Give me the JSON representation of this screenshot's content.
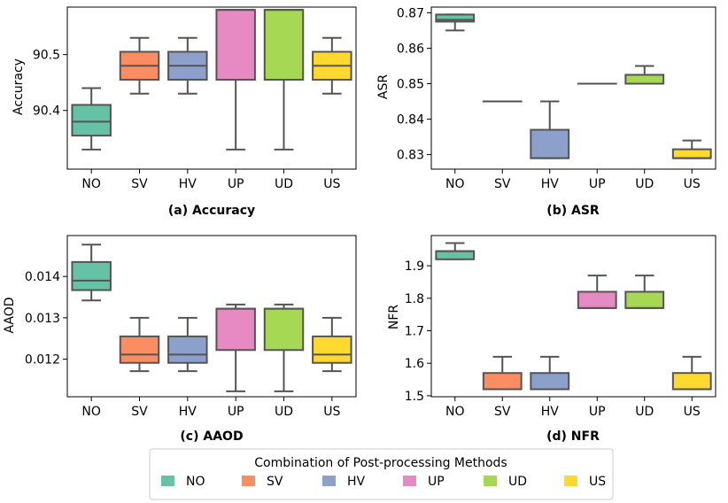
{
  "chart_data": [
    {
      "type": "box",
      "caption": "(a) Accuracy",
      "ylabel": "Accuracy",
      "xlabel": "",
      "categories": [
        "NO",
        "SV",
        "HV",
        "UP",
        "UD",
        "US"
      ],
      "ylim": [
        90.295,
        90.585
      ],
      "yticks": [
        90.4,
        90.5
      ],
      "ytick_labels": [
        "90.4",
        "90.5"
      ],
      "boxes": [
        {
          "category": "NO",
          "whislo": 90.33,
          "q1": 90.355,
          "med": 90.38,
          "q3": 90.41,
          "whishi": 90.44
        },
        {
          "category": "SV",
          "whislo": 90.43,
          "q1": 90.455,
          "med": 90.48,
          "q3": 90.505,
          "whishi": 90.53
        },
        {
          "category": "HV",
          "whislo": 90.43,
          "q1": 90.455,
          "med": 90.48,
          "q3": 90.505,
          "whishi": 90.53
        },
        {
          "category": "UP",
          "whislo": 90.33,
          "q1": 90.455,
          "med": 90.58,
          "q3": 90.58,
          "whishi": 90.58
        },
        {
          "category": "UD",
          "whislo": 90.33,
          "q1": 90.455,
          "med": 90.58,
          "q3": 90.58,
          "whishi": 90.58
        },
        {
          "category": "US",
          "whislo": 90.43,
          "q1": 90.455,
          "med": 90.48,
          "q3": 90.505,
          "whishi": 90.53
        }
      ]
    },
    {
      "type": "box",
      "caption": "(b) ASR",
      "ylabel": "ASR",
      "xlabel": "",
      "categories": [
        "NO",
        "SV",
        "HV",
        "UP",
        "UD",
        "US"
      ],
      "ylim": [
        0.8259,
        0.8716
      ],
      "yticks": [
        0.83,
        0.84,
        0.85,
        0.86,
        0.87
      ],
      "ytick_labels": [
        "0.83",
        "0.84",
        "0.85",
        "0.86",
        "0.87"
      ],
      "boxes": [
        {
          "category": "NO",
          "whislo": 0.865,
          "q1": 0.8675,
          "med": 0.868,
          "q3": 0.8695,
          "whishi": 0.8695
        },
        {
          "category": "SV",
          "whislo": 0.845,
          "q1": 0.845,
          "med": 0.845,
          "q3": 0.845,
          "whishi": 0.845
        },
        {
          "category": "HV",
          "whislo": 0.829,
          "q1": 0.829,
          "med": 0.829,
          "q3": 0.837,
          "whishi": 0.845
        },
        {
          "category": "UP",
          "whislo": 0.85,
          "q1": 0.85,
          "med": 0.85,
          "q3": 0.85,
          "whishi": 0.85
        },
        {
          "category": "UD",
          "whislo": 0.85,
          "q1": 0.85,
          "med": 0.85,
          "q3": 0.8525,
          "whishi": 0.855
        },
        {
          "category": "US",
          "whislo": 0.829,
          "q1": 0.829,
          "med": 0.829,
          "q3": 0.8315,
          "whishi": 0.834
        }
      ]
    },
    {
      "type": "box",
      "caption": "(c) AAOD",
      "ylabel": "AAOD",
      "xlabel": "",
      "categories": [
        "NO",
        "SV",
        "HV",
        "UP",
        "UD",
        "US"
      ],
      "ylim": [
        0.01109,
        0.01499
      ],
      "yticks": [
        0.012,
        0.013,
        0.014
      ],
      "ytick_labels": [
        "0.012",
        "0.013",
        "0.014"
      ],
      "boxes": [
        {
          "category": "NO",
          "whislo": 0.01342,
          "q1": 0.01367,
          "med": 0.0139,
          "q3": 0.01435,
          "whishi": 0.01477
        },
        {
          "category": "SV",
          "whislo": 0.01171,
          "q1": 0.01191,
          "med": 0.01211,
          "q3": 0.01255,
          "whishi": 0.013
        },
        {
          "category": "HV",
          "whislo": 0.01171,
          "q1": 0.01191,
          "med": 0.01211,
          "q3": 0.01255,
          "whishi": 0.013
        },
        {
          "category": "UP",
          "whislo": 0.01122,
          "q1": 0.01222,
          "med": 0.01322,
          "q3": 0.01322,
          "whishi": 0.01332
        },
        {
          "category": "UD",
          "whislo": 0.01122,
          "q1": 0.01222,
          "med": 0.01322,
          "q3": 0.01322,
          "whishi": 0.01332
        },
        {
          "category": "US",
          "whislo": 0.01171,
          "q1": 0.01191,
          "med": 0.01211,
          "q3": 0.01255,
          "whishi": 0.013
        }
      ]
    },
    {
      "type": "box",
      "caption": "(d) NFR",
      "ylabel": "NFR",
      "xlabel": "",
      "categories": [
        "NO",
        "SV",
        "HV",
        "UP",
        "UD",
        "US"
      ],
      "ylim": [
        1.497,
        1.993
      ],
      "yticks": [
        1.5,
        1.6,
        1.7,
        1.8,
        1.9
      ],
      "ytick_labels": [
        "1.5",
        "1.6",
        "1.7",
        "1.8",
        "1.9"
      ],
      "boxes": [
        {
          "category": "NO",
          "whislo": 1.92,
          "q1": 1.92,
          "med": 1.945,
          "q3": 1.945,
          "whishi": 1.97
        },
        {
          "category": "SV",
          "whislo": 1.52,
          "q1": 1.52,
          "med": 1.52,
          "q3": 1.57,
          "whishi": 1.62
        },
        {
          "category": "HV",
          "whislo": 1.52,
          "q1": 1.52,
          "med": 1.52,
          "q3": 1.57,
          "whishi": 1.62
        },
        {
          "category": "UP",
          "whislo": 1.77,
          "q1": 1.77,
          "med": 1.77,
          "q3": 1.82,
          "whishi": 1.87
        },
        {
          "category": "UD",
          "whislo": 1.77,
          "q1": 1.77,
          "med": 1.77,
          "q3": 1.82,
          "whishi": 1.87
        },
        {
          "category": "US",
          "whislo": 1.52,
          "q1": 1.52,
          "med": 1.52,
          "q3": 1.57,
          "whishi": 1.62
        }
      ]
    }
  ],
  "colors": {
    "NO": "#66c2a5",
    "SV": "#fc8d62",
    "HV": "#8da0cb",
    "UP": "#e78ac3",
    "UD": "#a6d854",
    "US": "#ffd92f",
    "box_edge": "#545454"
  },
  "legend": {
    "title": "Combination of Post-processing Methods",
    "placement": "bottom-center",
    "items": [
      "NO",
      "SV",
      "HV",
      "UP",
      "UD",
      "US"
    ]
  }
}
